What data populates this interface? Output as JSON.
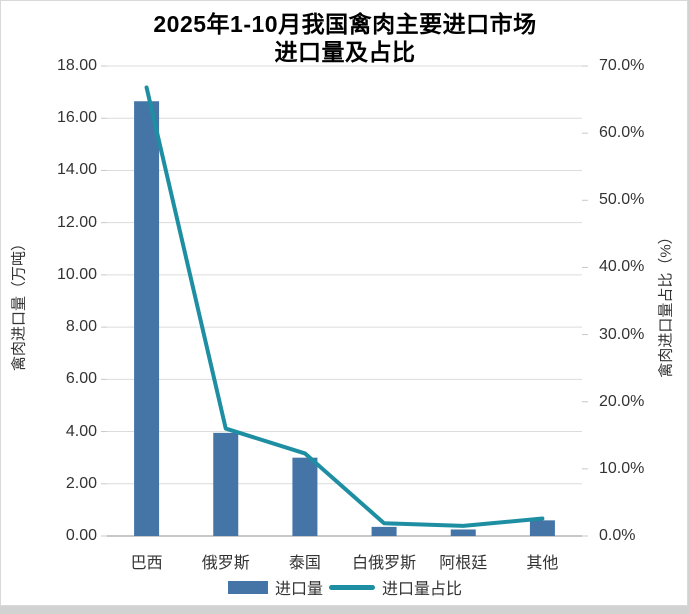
{
  "chart_data": {
    "type": "bar-line-combo",
    "title": "2025年1-10月我国禽肉主要进口市场进口量及占比",
    "title_lines": [
      "2025年1-10月我国禽肉主要进口市场",
      "进口量及占比"
    ],
    "categories": [
      "巴西",
      "俄罗斯",
      "泰国",
      "白俄罗斯",
      "阿根廷",
      "其他"
    ],
    "series": [
      {
        "name": "进口量",
        "type": "bar",
        "axis": "left",
        "unit": "万吨",
        "values": [
          16.65,
          3.95,
          3.0,
          0.35,
          0.25,
          0.6
        ],
        "color": "#4475a6"
      },
      {
        "name": "进口量占比",
        "type": "line",
        "axis": "right",
        "unit": "%",
        "values": [
          66.8,
          16.0,
          12.3,
          1.9,
          1.5,
          2.6
        ],
        "color": "#1e8ea2"
      }
    ],
    "left_axis": {
      "title": "禽肉进口量（万吨）",
      "min": 0,
      "max": 18,
      "step": 2,
      "ticks": [
        "18.00",
        "16.00",
        "14.00",
        "12.00",
        "10.00",
        "8.00",
        "6.00",
        "4.00",
        "2.00",
        "0.00"
      ]
    },
    "right_axis": {
      "title": "禽肉进口量占比（%）",
      "min": 0,
      "max": 70,
      "step": 10,
      "ticks": [
        "70.0%",
        "60.0%",
        "50.0%",
        "40.0%",
        "30.0%",
        "20.0%",
        "10.0%",
        "0.0%"
      ]
    },
    "grid": true,
    "legend_position": "bottom",
    "colors": {
      "grid": "#dcdcdc",
      "axis_line": "#c8c8c8",
      "tick_mark": "#c8c8c8",
      "text": "#333333",
      "title": "#000000",
      "background": "#ffffff",
      "frame_border": "#d9d9d9",
      "bottom_strip": "#d2d2d2"
    }
  }
}
